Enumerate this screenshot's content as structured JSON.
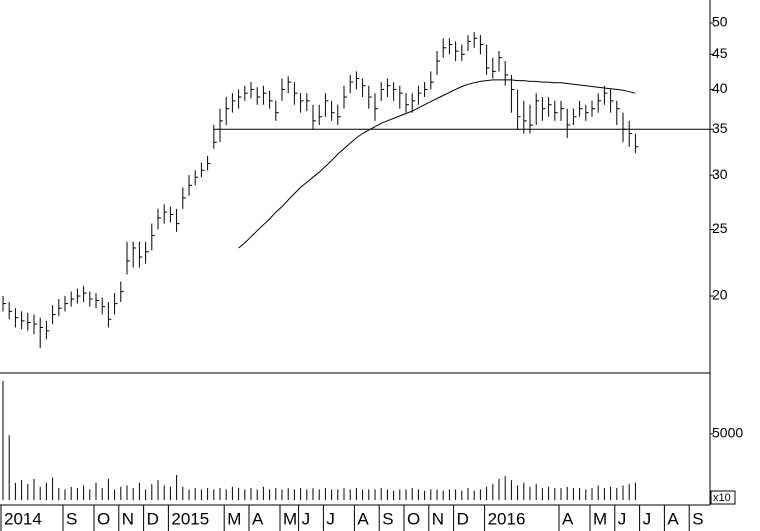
{
  "chart_data": {
    "type": "ohlc",
    "categories": [
      "2014",
      null,
      null,
      null,
      null,
      null,
      null,
      null,
      null,
      null,
      "S",
      null,
      null,
      null,
      null,
      "O",
      null,
      null,
      null,
      "N",
      null,
      null,
      null,
      "D",
      null,
      null,
      null,
      "2015",
      null,
      null,
      null,
      null,
      null,
      null,
      null,
      null,
      "M",
      null,
      null,
      null,
      "A",
      null,
      null,
      null,
      null,
      "M",
      null,
      null,
      "J",
      null,
      null,
      null,
      "J",
      null,
      null,
      null,
      null,
      "A",
      null,
      null,
      null,
      "S",
      null,
      null,
      null,
      "O",
      null,
      null,
      null,
      "N",
      null,
      null,
      null,
      "D",
      null,
      null,
      null,
      null,
      "2016",
      null,
      null,
      null,
      null,
      null,
      null,
      null,
      null,
      null,
      null,
      null,
      "A",
      null,
      null,
      null,
      null,
      "M",
      null,
      null,
      null,
      "J",
      null,
      null,
      null,
      "J",
      null,
      null,
      null,
      "A",
      null,
      null,
      null,
      "S",
      null
    ],
    "high": [
      20.0,
      19.6,
      19.2,
      19.0,
      18.9,
      18.8,
      18.6,
      18.4,
      19.4,
      19.8,
      20.0,
      20.3,
      20.5,
      20.7,
      20.3,
      20.2,
      19.9,
      19.6,
      20.2,
      21.0,
      24.0,
      24.0,
      24.0,
      24.0,
      25.5,
      26.8,
      27.2,
      27.0,
      26.8,
      28.8,
      30.0,
      30.5,
      31.3,
      32.0,
      35.5,
      37.5,
      39.0,
      39.5,
      40.0,
      40.5,
      41.0,
      40.3,
      40.5,
      39.8,
      38.5,
      41.5,
      41.8,
      41.0,
      39.5,
      39.5,
      38.0,
      38.0,
      39.5,
      38.5,
      38.0,
      40.5,
      42.0,
      42.5,
      41.5,
      40.5,
      39.5,
      41.0,
      41.5,
      41.0,
      40.5,
      39.5,
      39.5,
      40.5,
      41.0,
      42.5,
      45.5,
      47.5,
      47.5,
      47.0,
      46.5,
      48.0,
      48.5,
      48.0,
      46.5,
      44.5,
      45.5,
      44.0,
      42.0,
      40.0,
      38.5,
      38.0,
      39.5,
      39.0,
      39.0,
      38.5,
      38.5,
      37.5,
      37.5,
      38.5,
      38.0,
      38.5,
      39.5,
      40.5,
      40.0,
      38.5,
      37.0,
      36.0,
      34.5,
      null,
      null,
      null,
      null,
      null,
      null,
      null,
      null,
      null,
      null
    ],
    "low": [
      19.0,
      18.5,
      18.0,
      17.9,
      17.8,
      17.6,
      16.8,
      17.3,
      18.2,
      18.7,
      19.0,
      19.3,
      19.5,
      19.6,
      19.3,
      19.2,
      18.8,
      18.0,
      18.8,
      19.6,
      21.5,
      22.0,
      22.0,
      22.3,
      23.3,
      25.0,
      25.5,
      25.6,
      24.8,
      26.8,
      28.0,
      29.0,
      29.8,
      30.5,
      32.8,
      33.5,
      35.5,
      37.0,
      37.5,
      38.5,
      38.8,
      38.0,
      38.0,
      37.5,
      36.0,
      38.5,
      39.5,
      38.0,
      37.0,
      37.2,
      35.0,
      35.5,
      36.5,
      36.0,
      35.5,
      37.5,
      39.5,
      40.0,
      39.0,
      37.5,
      36.0,
      38.5,
      39.0,
      38.5,
      37.5,
      37.0,
      37.0,
      38.0,
      39.0,
      40.0,
      42.0,
      44.5,
      45.0,
      44.0,
      44.0,
      45.5,
      46.0,
      45.0,
      42.0,
      41.5,
      42.5,
      40.5,
      37.0,
      35.0,
      34.5,
      34.5,
      35.5,
      36.0,
      36.5,
      36.0,
      36.0,
      34.0,
      35.5,
      36.5,
      36.0,
      36.5,
      37.0,
      38.0,
      37.0,
      35.5,
      33.5,
      33.0,
      32.3,
      null,
      null,
      null,
      null,
      null,
      null,
      null,
      null,
      null,
      null
    ],
    "close": [
      19.5,
      19.0,
      18.6,
      18.4,
      18.3,
      18.2,
      18.0,
      17.8,
      18.8,
      19.2,
      19.5,
      19.8,
      20.0,
      20.2,
      19.8,
      19.7,
      19.3,
      18.5,
      19.5,
      20.3,
      22.5,
      23.5,
      22.8,
      23.2,
      24.5,
      26.0,
      26.5,
      26.3,
      25.5,
      27.8,
      29.0,
      29.8,
      30.5,
      31.2,
      33.5,
      36.0,
      37.5,
      38.5,
      39.0,
      39.5,
      40.0,
      39.0,
      39.5,
      38.5,
      37.0,
      40.0,
      41.0,
      39.5,
      38.5,
      38.5,
      36.0,
      36.5,
      38.5,
      37.0,
      36.5,
      39.0,
      41.0,
      41.5,
      40.5,
      39.0,
      37.5,
      40.0,
      40.5,
      40.0,
      39.5,
      38.0,
      38.5,
      39.5,
      40.0,
      41.0,
      44.0,
      46.0,
      46.5,
      45.5,
      45.0,
      47.0,
      47.5,
      46.5,
      43.0,
      42.5,
      44.5,
      42.0,
      40.0,
      36.5,
      36.0,
      35.5,
      38.5,
      37.5,
      38.0,
      37.0,
      37.5,
      35.5,
      36.5,
      37.5,
      37.0,
      37.5,
      38.5,
      39.5,
      38.5,
      37.5,
      35.0,
      34.5,
      33.0,
      null,
      null,
      null,
      null,
      null,
      null,
      null,
      null,
      null,
      null
    ],
    "ma": [
      null,
      null,
      null,
      null,
      null,
      null,
      null,
      null,
      null,
      null,
      null,
      null,
      null,
      null,
      null,
      null,
      null,
      null,
      null,
      null,
      null,
      null,
      null,
      null,
      null,
      null,
      null,
      null,
      null,
      null,
      null,
      null,
      null,
      null,
      null,
      null,
      null,
      null,
      23.5,
      23.9,
      24.4,
      24.9,
      25.4,
      25.9,
      26.5,
      27.0,
      27.6,
      28.2,
      28.8,
      29.3,
      29.8,
      30.3,
      30.9,
      31.5,
      32.2,
      32.8,
      33.4,
      34.0,
      34.5,
      34.9,
      35.3,
      35.7,
      36.0,
      36.3,
      36.6,
      36.9,
      37.2,
      37.6,
      38.0,
      38.4,
      38.8,
      39.2,
      39.6,
      40.0,
      40.4,
      40.7,
      40.9,
      41.1,
      41.2,
      41.3,
      41.3,
      41.3,
      41.3,
      41.2,
      41.2,
      41.1,
      41.1,
      41.0,
      41.0,
      40.9,
      40.9,
      40.8,
      40.7,
      40.6,
      40.5,
      40.4,
      40.3,
      40.2,
      40.1,
      40.0,
      39.9,
      39.7,
      39.5,
      null,
      null,
      null,
      null,
      null,
      null,
      null,
      null,
      null,
      null
    ],
    "hline": 35,
    "log_scale": true,
    "ylim": [
      15.5,
      54
    ],
    "yticks": [
      20,
      25,
      30,
      35,
      40,
      45,
      50
    ],
    "color": "#000000",
    "volume": {
      "values": [
        9000,
        4900,
        1300,
        1500,
        1200,
        1600,
        1000,
        1300,
        1700,
        900,
        800,
        1000,
        900,
        1100,
        800,
        1300,
        900,
        1600,
        800,
        1000,
        1100,
        900,
        1300,
        800,
        1200,
        1500,
        1100,
        1000,
        1900,
        1000,
        800,
        900,
        800,
        900,
        800,
        900,
        800,
        1000,
        900,
        800,
        900,
        800,
        1000,
        800,
        900,
        800,
        900,
        800,
        900,
        800,
        900,
        800,
        900,
        800,
        800,
        900,
        800,
        900,
        800,
        800,
        800,
        900,
        800,
        700,
        800,
        800,
        900,
        800,
        700,
        800,
        800,
        700,
        800,
        800,
        700,
        900,
        700,
        800,
        1000,
        1200,
        1600,
        1800,
        1500,
        1100,
        1300,
        1000,
        1200,
        900,
        1000,
        900,
        900,
        1000,
        900,
        900,
        800,
        900,
        1100,
        900,
        1000,
        900,
        1100,
        1200,
        1300,
        null,
        null,
        null,
        null,
        null,
        null,
        null,
        null,
        null,
        null
      ],
      "ylim": [
        0,
        9600
      ],
      "yticks": [
        5000
      ],
      "scale_label": "x10"
    }
  }
}
